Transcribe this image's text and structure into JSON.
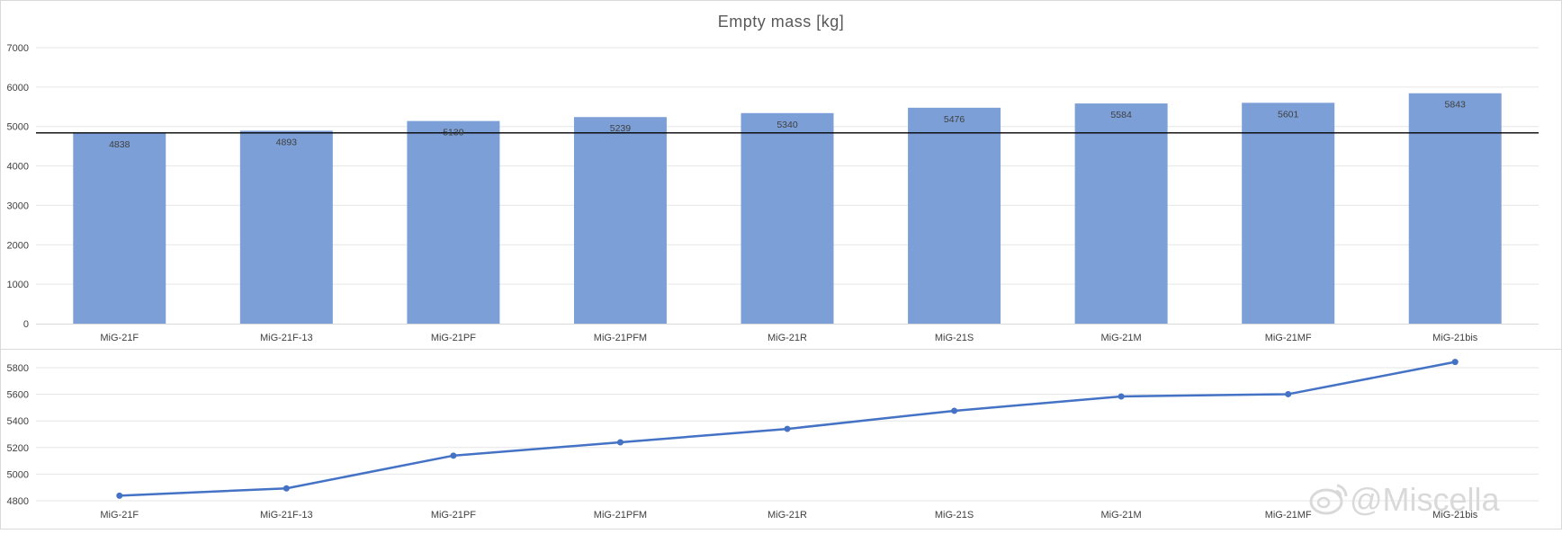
{
  "chart_data": [
    {
      "type": "bar",
      "title": "Empty mass [kg]",
      "categories": [
        "MiG-21F",
        "MiG-21F-13",
        "MiG-21PF",
        "MiG-21PFM",
        "MiG-21R",
        "MiG-21S",
        "MiG-21M",
        "MiG-21MF",
        "MiG-21bis"
      ],
      "values": [
        4838,
        4893,
        5139,
        5239,
        5340,
        5476,
        5584,
        5601,
        5843
      ],
      "ylim": [
        0,
        7000
      ],
      "yticks": [
        0,
        1000,
        2000,
        3000,
        4000,
        5000,
        6000,
        7000
      ],
      "reference_line": 4838,
      "data_labels": true,
      "grid": true,
      "bar_color": "#7b9fd6",
      "reference_line_color": "#000000"
    },
    {
      "type": "line",
      "categories": [
        "MiG-21F",
        "MiG-21F-13",
        "MiG-21PF",
        "MiG-21PFM",
        "MiG-21R",
        "MiG-21S",
        "MiG-21M",
        "MiG-21MF",
        "MiG-21bis"
      ],
      "values": [
        4838,
        4893,
        5139,
        5239,
        5340,
        5476,
        5584,
        5601,
        5843
      ],
      "ylim": [
        4800,
        5900
      ],
      "yticks": [
        4800,
        5000,
        5200,
        5400,
        5600,
        5800
      ],
      "grid": true,
      "line_color": "#4472c4"
    }
  ],
  "watermark": {
    "text": "@Miscella",
    "icon": "weibo-icon"
  },
  "colors": {
    "gridline": "#e6e6e6",
    "axis": "#d9d9d9",
    "border": "#d9d9d9"
  }
}
